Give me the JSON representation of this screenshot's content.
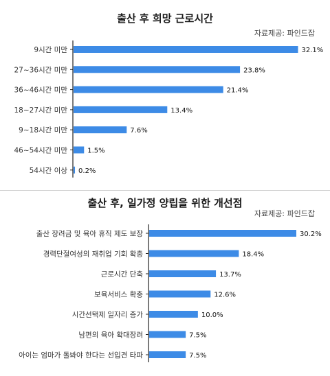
{
  "colors": {
    "bar": "#3d8be6",
    "axis": "#222222",
    "text": "#333333"
  },
  "chart_data": [
    {
      "type": "bar",
      "orientation": "horizontal",
      "title": "출산 후 희망 근로시간",
      "source": "자료제공: 파인드잡",
      "categories": [
        "9시간 미만",
        "27~36시간 미만",
        "36~46시간 미만",
        "18~27시간 미만",
        "9~18시간 미만",
        "46~54시간 미만",
        "54시간 이상"
      ],
      "values": [
        32.1,
        23.8,
        21.4,
        13.4,
        7.6,
        1.5,
        0.2
      ],
      "value_labels": [
        "32.1%",
        "23.8%",
        "21.4%",
        "13.4%",
        "7.6%",
        "1.5%",
        "0.2%"
      ],
      "xlim": [
        0,
        35
      ],
      "grid": false,
      "legend": "none"
    },
    {
      "type": "bar",
      "orientation": "horizontal",
      "title": "출산 후, 일가정 양립을 위한 개선점",
      "source": "자료제공: 파인드잡",
      "categories": [
        "출산 장려금 및 육아 휴직 제도 보장",
        "경력단절여성의 재취업 기회 확충",
        "근로시간 단축",
        "보육서비스 확충",
        "시간선택제 일자리 증가",
        "남편의 육아 확대장려",
        "아이는 엄마가 돌봐야 한다는 선입견 타파"
      ],
      "values": [
        30.2,
        18.4,
        13.7,
        12.6,
        10.0,
        7.5,
        7.5
      ],
      "value_labels": [
        "30.2%",
        "18.4%",
        "13.7%",
        "12.6%",
        "10.0%",
        "7.5%",
        "7.5%"
      ],
      "xlim": [
        0,
        35
      ],
      "grid": false,
      "legend": "none"
    }
  ]
}
